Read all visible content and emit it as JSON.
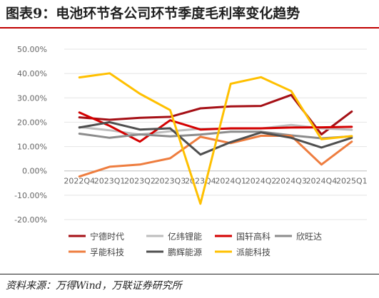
{
  "header": {
    "title": "图表9：电池环节各公司环节季度毛利率变化趋势"
  },
  "footer": {
    "source": "资料来源：万得Wind，万联证券研究所"
  },
  "chart_data": {
    "type": "line",
    "categories": [
      "2022Q4",
      "2023Q1",
      "2023Q2",
      "2023Q3",
      "2023Q4",
      "2024Q1",
      "2024Q2",
      "2024Q3",
      "2024Q4",
      "2025Q1"
    ],
    "ylim": [
      -20,
      50
    ],
    "yticks": [
      -20,
      -10,
      0,
      10,
      20,
      30,
      40,
      50
    ],
    "ytick_labels": [
      "-20.00%",
      "-10.00%",
      "0.00%",
      "10.00%",
      "20.00%",
      "30.00%",
      "40.00%",
      "50.00%"
    ],
    "grid": true,
    "legend_position": "bottom",
    "series": [
      {
        "name": "宁德时代",
        "color": "#a50f15",
        "values": [
          22.0,
          21.0,
          21.8,
          22.2,
          25.7,
          26.5,
          26.7,
          31.2,
          15.0,
          24.4
        ]
      },
      {
        "name": "亿纬锂能",
        "color": "#bdbdbd",
        "values": [
          18.0,
          16.7,
          14.9,
          16.3,
          17.3,
          17.3,
          17.4,
          18.9,
          17.5,
          16.9
        ]
      },
      {
        "name": "国轩高科",
        "color": "#d40000",
        "values": [
          24.0,
          18.5,
          12.0,
          20.8,
          17.0,
          17.5,
          17.5,
          17.8,
          17.9,
          18.1
        ]
      },
      {
        "name": "欣旺达",
        "color": "#8c8c8c",
        "values": [
          15.3,
          13.6,
          15.0,
          14.2,
          14.9,
          16.1,
          16.1,
          14.6,
          13.4,
          14.2
        ]
      },
      {
        "name": "孚能科技",
        "color": "#ee7d3f",
        "values": [
          -2.3,
          1.7,
          2.6,
          5.2,
          14.0,
          11.4,
          14.4,
          14.4,
          2.6,
          12.0
        ]
      },
      {
        "name": "鹏辉能源",
        "color": "#4f4f4f",
        "values": [
          17.8,
          20.0,
          17.0,
          17.5,
          6.7,
          11.8,
          15.8,
          13.6,
          9.6,
          13.6
        ]
      },
      {
        "name": "派能科技",
        "color": "#ffc000",
        "values": [
          38.4,
          40.1,
          31.7,
          25.0,
          -13.5,
          35.8,
          38.5,
          32.8,
          13.0,
          14.3
        ]
      }
    ]
  }
}
